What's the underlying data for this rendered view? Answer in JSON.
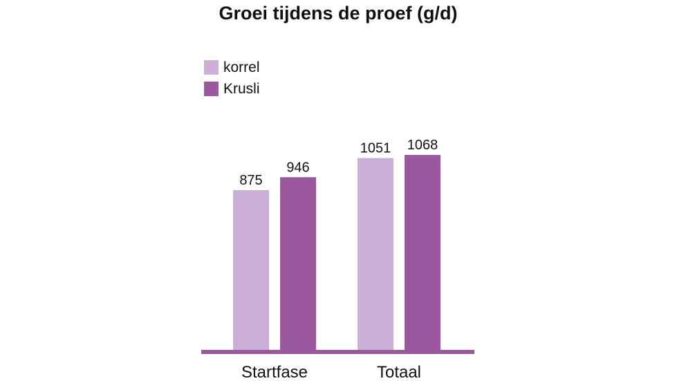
{
  "chart_data": {
    "type": "bar",
    "title": "Groei tijdens de proef (g/d)",
    "categories": [
      "Startfase",
      "Totaal"
    ],
    "series": [
      {
        "name": "korrel",
        "color": "#cbafd6",
        "values": [
          875,
          1051
        ]
      },
      {
        "name": "Krusli",
        "color": "#9b589f",
        "values": [
          946,
          1068
        ]
      }
    ],
    "ylim": [
      0,
      1200
    ],
    "grid": false,
    "legend_position": "top-left",
    "axis_color": "#9b589f"
  }
}
